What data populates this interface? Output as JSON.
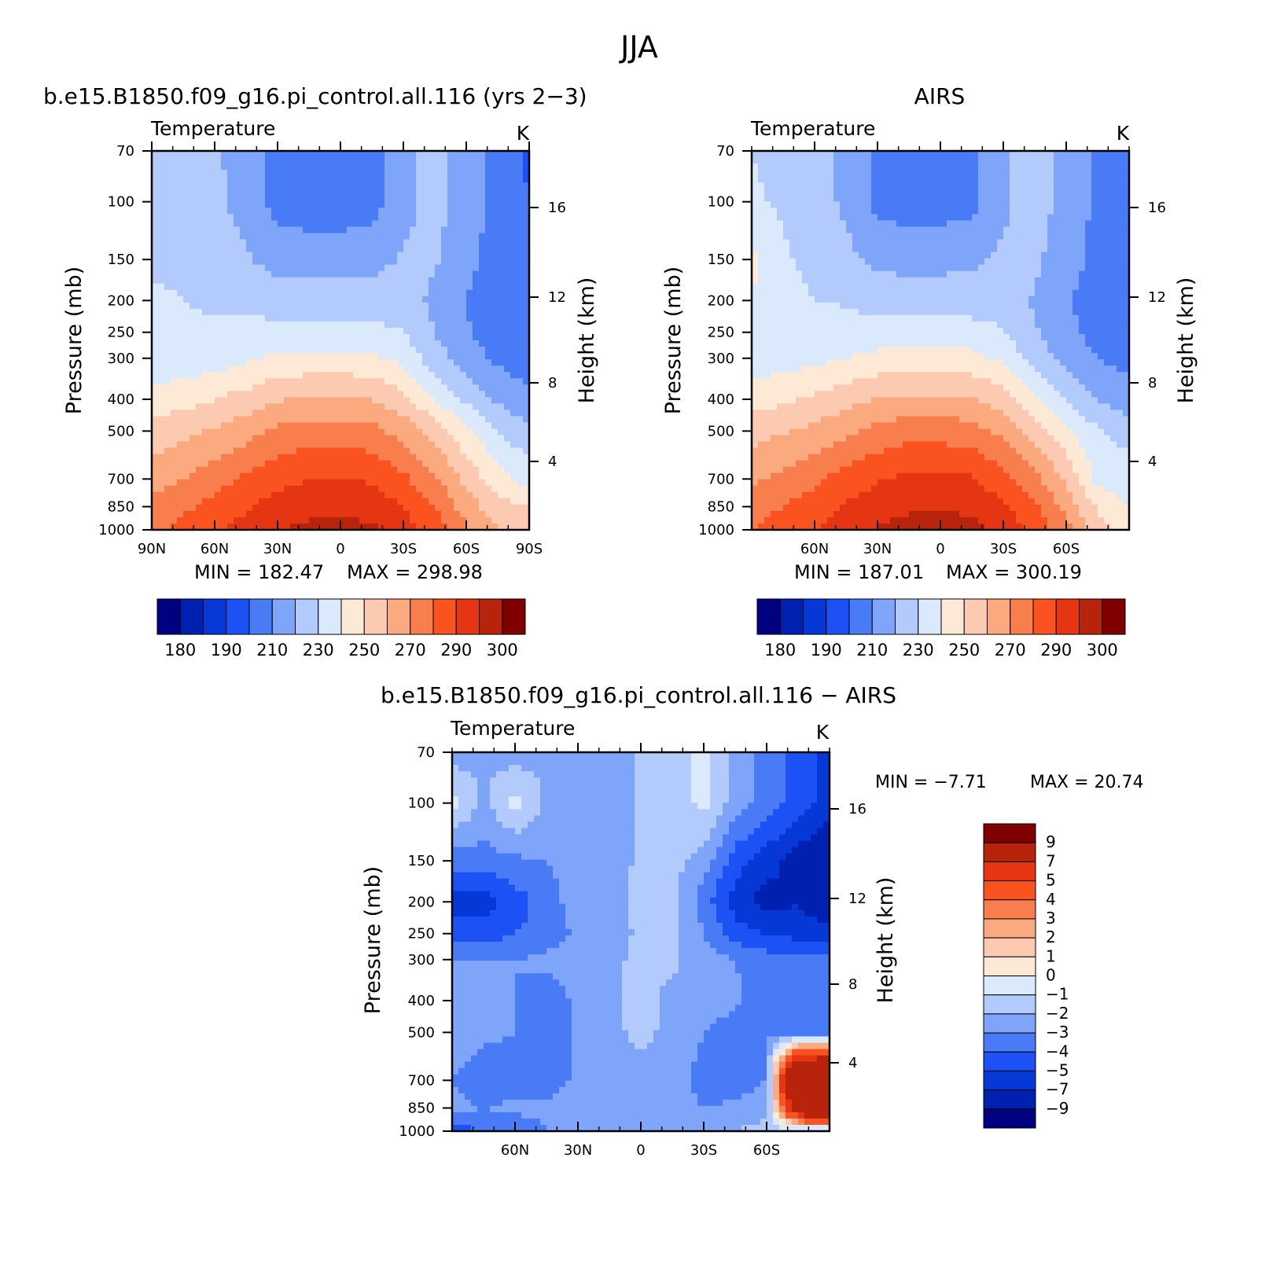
{
  "figure": {
    "title": "JJA",
    "units": "K",
    "variable": "Temperature"
  },
  "chart_data": [
    {
      "type": "heatmap",
      "id": "model",
      "title": "b.e15.B1850.f09_g16.pi_control.all.116 (yrs 2−3)",
      "subtitle": "Temperature",
      "units": "K",
      "xlabel": "",
      "ylabel": "Pressure (mb)",
      "ylabel_right": "Height (km)",
      "x_ticks": [
        "90N",
        "60N",
        "30N",
        "0",
        "30S",
        "60S",
        "90S"
      ],
      "x_tick_values": [
        90,
        60,
        30,
        0,
        -30,
        -60,
        -90
      ],
      "xlim": [
        90,
        -90
      ],
      "y_ticks": [
        70,
        100,
        150,
        200,
        250,
        300,
        400,
        500,
        700,
        850,
        1000
      ],
      "ylim": [
        1000,
        70
      ],
      "y_right_ticks": [
        16,
        12,
        8,
        4
      ],
      "min_label": "MIN = 182.47",
      "max_label": "MAX = 298.98",
      "min": 182.47,
      "max": 298.98,
      "colorbar_labels": [
        "180",
        "190",
        "210",
        "230",
        "250",
        "270",
        "290",
        "300"
      ],
      "contour_levels": [
        175,
        180,
        185,
        190,
        200,
        210,
        220,
        230,
        240,
        250,
        260,
        270,
        280,
        290,
        295,
        300
      ],
      "field": {
        "lats": [
          90,
          75,
          60,
          45,
          30,
          15,
          0,
          -15,
          -30,
          -45,
          -60,
          -75,
          -90
        ],
        "pressures": [
          70,
          100,
          150,
          200,
          250,
          300,
          400,
          500,
          700,
          850,
          1000
        ],
        "values": [
          [
            218,
            218,
            212,
            205,
            196,
            194,
            194,
            196,
            207,
            214,
            204,
            198,
            188
          ],
          [
            218,
            218,
            212,
            206,
            196,
            194,
            194,
            196,
            207,
            214,
            204,
            197,
            190
          ],
          [
            219,
            219,
            216,
            211,
            206,
            206,
            206,
            207,
            211,
            211,
            203,
            196,
            193
          ],
          [
            221,
            220,
            218,
            218,
            215,
            214,
            214,
            214,
            214,
            208,
            200,
            194,
            193
          ],
          [
            222,
            222,
            222,
            223,
            223,
            223,
            223,
            223,
            220,
            210,
            201,
            195,
            193
          ],
          [
            223,
            223,
            225,
            228,
            232,
            233,
            233,
            232,
            227,
            214,
            205,
            198,
            195
          ],
          [
            234,
            236,
            240,
            244,
            249,
            251,
            251,
            250,
            243,
            230,
            218,
            208,
            202
          ],
          [
            244,
            247,
            251,
            256,
            262,
            265,
            265,
            263,
            256,
            245,
            232,
            220,
            212
          ],
          [
            256,
            260,
            266,
            272,
            277,
            280,
            280,
            279,
            272,
            262,
            247,
            234,
            226
          ],
          [
            263,
            268,
            273,
            279,
            284,
            286,
            287,
            285,
            280,
            270,
            255,
            244,
            240
          ],
          [
            268,
            273,
            278,
            284,
            289,
            293,
            294,
            292,
            285,
            275,
            262,
            250,
            245
          ]
        ]
      }
    },
    {
      "type": "heatmap",
      "id": "obs",
      "title": "AIRS",
      "subtitle": "Temperature",
      "units": "K",
      "xlabel": "",
      "ylabel": "Pressure (mb)",
      "ylabel_right": "Height (km)",
      "x_ticks": [
        "60N",
        "30N",
        "0",
        "30S",
        "60S"
      ],
      "x_tick_values": [
        60,
        30,
        0,
        -30,
        -60
      ],
      "xlim": [
        90,
        -90
      ],
      "y_ticks": [
        70,
        100,
        150,
        200,
        250,
        300,
        400,
        500,
        700,
        850,
        1000
      ],
      "ylim": [
        1000,
        70
      ],
      "y_right_ticks": [
        16,
        12,
        8,
        4
      ],
      "min_label": "MIN = 187.01",
      "max_label": "MAX = 300.19",
      "min": 187.01,
      "max": 300.19,
      "colorbar_labels": [
        "180",
        "190",
        "210",
        "230",
        "250",
        "270",
        "290",
        "300"
      ],
      "contour_levels": [
        175,
        180,
        185,
        190,
        200,
        210,
        220,
        230,
        240,
        250,
        260,
        270,
        280,
        290,
        295,
        300
      ],
      "field": {
        "lats": [
          90,
          75,
          60,
          45,
          30,
          15,
          0,
          -15,
          -30,
          -45,
          -60,
          -75,
          -90
        ],
        "pressures": [
          70,
          100,
          150,
          200,
          250,
          300,
          400,
          500,
          700,
          850,
          1000
        ],
        "values": [
          [
            220,
            218,
            214,
            207,
            197,
            195,
            195,
            197,
            208,
            215,
            206,
            199,
            190
          ],
          [
            221,
            219,
            214,
            208,
            197,
            195,
            195,
            197,
            208,
            215,
            206,
            198,
            192
          ],
          [
            232,
            221,
            218,
            213,
            207,
            207,
            207,
            208,
            212,
            212,
            204,
            197,
            195
          ],
          [
            230,
            222,
            220,
            219,
            216,
            215,
            215,
            215,
            215,
            209,
            201,
            196,
            195
          ],
          [
            224,
            223,
            223,
            224,
            224,
            224,
            224,
            224,
            221,
            211,
            202,
            197,
            195
          ],
          [
            225,
            225,
            227,
            230,
            233,
            234,
            234,
            233,
            228,
            215,
            206,
            200,
            197
          ],
          [
            236,
            238,
            242,
            246,
            250,
            252,
            252,
            251,
            244,
            231,
            219,
            209,
            204
          ],
          [
            246,
            249,
            253,
            258,
            263,
            266,
            266,
            264,
            257,
            246,
            233,
            221,
            214
          ],
          [
            258,
            262,
            268,
            274,
            279,
            282,
            282,
            281,
            274,
            263,
            248,
            226,
            228
          ],
          [
            265,
            270,
            275,
            281,
            286,
            288,
            289,
            287,
            282,
            272,
            257,
            238,
            229
          ],
          [
            270,
            275,
            280,
            286,
            291,
            295,
            296,
            294,
            287,
            277,
            263,
            245,
            232
          ]
        ]
      }
    },
    {
      "type": "heatmap",
      "id": "diff",
      "title": "b.e15.B1850.f09_g16.pi_control.all.116 − AIRS",
      "subtitle": "Temperature",
      "units": "K",
      "xlabel": "",
      "ylabel": "Pressure (mb)",
      "ylabel_right": "Height (km)",
      "x_ticks": [
        "60N",
        "30N",
        "0",
        "30S",
        "60S"
      ],
      "x_tick_values": [
        60,
        30,
        0,
        -30,
        -60
      ],
      "xlim": [
        90,
        -90
      ],
      "y_ticks": [
        70,
        100,
        150,
        200,
        250,
        300,
        400,
        500,
        700,
        850,
        1000
      ],
      "ylim": [
        1000,
        70
      ],
      "y_right_ticks": [
        16,
        12,
        8,
        4
      ],
      "min_label": "MIN = −7.71",
      "max_label": "MAX = 20.74",
      "min": -7.71,
      "max": 20.74,
      "colorbar_labels": [
        "9",
        "7",
        "5",
        "4",
        "3",
        "2",
        "1",
        "0",
        "−1",
        "−2",
        "−3",
        "−4",
        "−5",
        "−7",
        "−9"
      ],
      "contour_levels": [
        -9,
        -7,
        -5,
        -4,
        -3,
        -2,
        -1,
        0,
        1,
        2,
        3,
        4,
        5,
        7,
        9
      ],
      "field": {
        "lats": [
          90,
          75,
          60,
          45,
          30,
          15,
          0,
          -15,
          -30,
          -45,
          -60,
          -75,
          -90
        ],
        "pressures": [
          70,
          100,
          150,
          200,
          250,
          300,
          400,
          500,
          700,
          850,
          1000
        ],
        "values": [
          [
            -1.5,
            -1.2,
            -1.5,
            -1.2,
            -1.5,
            -1.5,
            -0.8,
            -0.6,
            0.3,
            -1.2,
            -2.5,
            -3.5,
            -4.5
          ],
          [
            0.3,
            -1.2,
            0.3,
            -1.2,
            -1.5,
            -1.5,
            -0.8,
            -0.6,
            0.3,
            -1.5,
            -2.5,
            -3.5,
            -4.5
          ],
          [
            -2.5,
            -2.5,
            -2.2,
            -2.0,
            -1.5,
            -1.5,
            -0.8,
            -0.6,
            -1.5,
            -3.5,
            -4.5,
            -5.5,
            -6.5
          ],
          [
            -4.5,
            -4.5,
            -3.5,
            -2.5,
            -1.5,
            -1.2,
            -0.8,
            -0.8,
            -2.5,
            -4.5,
            -5.5,
            -5.0,
            -6.0
          ],
          [
            -3.5,
            -3.5,
            -3.0,
            -2.5,
            -1.8,
            -1.5,
            -0.8,
            -0.8,
            -2.0,
            -3.5,
            -4.0,
            -4.5,
            -4.5
          ],
          [
            -2.0,
            -2.0,
            -2.0,
            -1.8,
            -1.5,
            -1.2,
            -0.8,
            -0.8,
            -1.5,
            -2.0,
            -2.5,
            -2.5,
            -2.5
          ],
          [
            -1.8,
            -1.8,
            -2.0,
            -2.5,
            -1.8,
            -1.2,
            -0.8,
            -1.2,
            -1.5,
            -1.8,
            -2.5,
            -2.5,
            -2.5
          ],
          [
            -1.5,
            -1.8,
            -2.0,
            -2.5,
            -1.8,
            -1.2,
            -0.8,
            -1.2,
            -2.0,
            -2.5,
            -2.0,
            -2.5,
            -2.5
          ],
          [
            -2.0,
            -2.5,
            -2.5,
            -2.5,
            -1.8,
            -1.5,
            -1.2,
            -1.5,
            -2.5,
            -2.5,
            -2.0,
            18.0,
            19.0
          ],
          [
            -1.8,
            -2.0,
            -1.8,
            -1.8,
            -1.5,
            -1.5,
            -1.0,
            -1.5,
            -2.0,
            -1.8,
            -1.5,
            12.0,
            20.0
          ],
          [
            -3.5,
            -3.0,
            -2.5,
            -2.0,
            -1.8,
            -1.5,
            -1.0,
            -1.5,
            -1.5,
            -1.0,
            -0.5,
            -1.0,
            -2.0
          ]
        ]
      }
    }
  ],
  "colors": {
    "abs": [
      "#000080",
      "#0020b0",
      "#0538d6",
      "#1c52f5",
      "#4a7bf7",
      "#7ea5fa",
      "#b2cbfc",
      "#dbe9fd",
      "#fee8d6",
      "#fccab0",
      "#fba97f",
      "#f97e4e",
      "#fa5320",
      "#e53512",
      "#b8230b",
      "#800000"
    ],
    "diff_from_bottom": [
      "#000080",
      "#0020b0",
      "#0538d6",
      "#1c52f5",
      "#4a7bf7",
      "#7ea5fa",
      "#b2cbfc",
      "#dbe9fd",
      "#fee8d6",
      "#fccab0",
      "#fba97f",
      "#f97e4e",
      "#fa5320",
      "#e53512",
      "#b8230b",
      "#800000"
    ]
  }
}
